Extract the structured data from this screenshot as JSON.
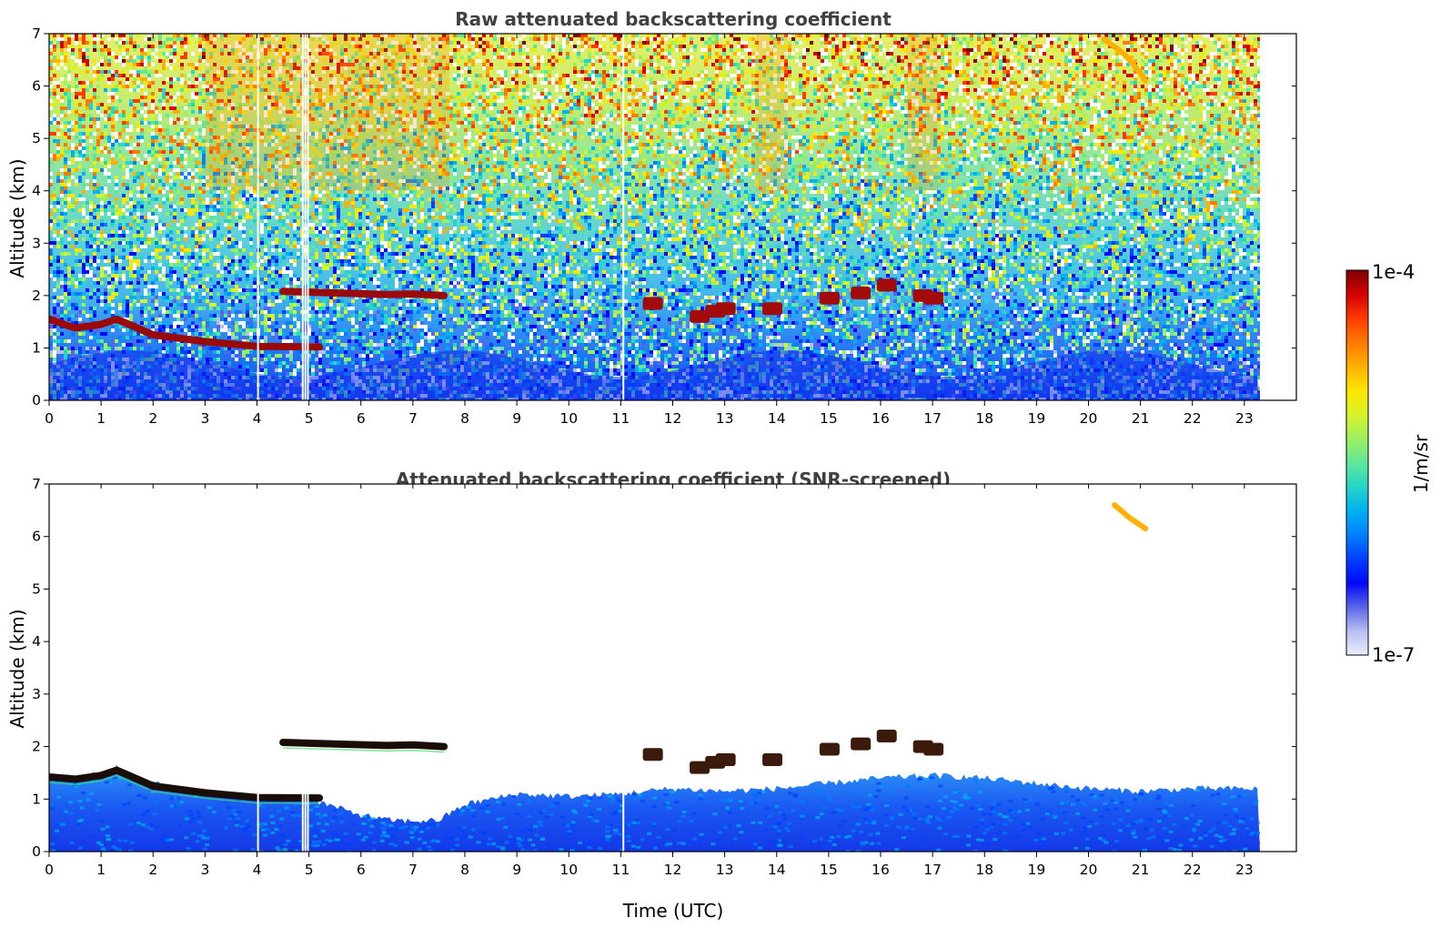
{
  "chart_data": [
    {
      "type": "heatmap",
      "title": "Raw attenuated backscattering coefficient",
      "xlabel": "",
      "ylabel": "Altitude (km)",
      "xlim": [
        0,
        24
      ],
      "ylim": [
        0,
        7
      ],
      "x_ticks": [
        "0",
        "1",
        "2",
        "3",
        "4",
        "5",
        "6",
        "7",
        "8",
        "9",
        "10",
        "11",
        "12",
        "13",
        "14",
        "15",
        "16",
        "17",
        "18",
        "19",
        "20",
        "21",
        "22",
        "23"
      ],
      "y_ticks": [
        "0",
        "1",
        "2",
        "3",
        "4",
        "5",
        "6",
        "7"
      ],
      "data_end_time": 23.3,
      "colorscale": "jet",
      "noise": "high",
      "dropouts_x": [
        4.02,
        4.88,
        4.93,
        4.98,
        11.05
      ],
      "layers": [
        {
          "name": "boundary layer top",
          "x": [
            0.0,
            0.5,
            1.0,
            1.3,
            2.0,
            3.0,
            4.0,
            5.2
          ],
          "y": [
            1.55,
            1.38,
            1.45,
            1.55,
            1.25,
            1.12,
            1.03,
            1.02
          ]
        },
        {
          "name": "elevated layer",
          "x": [
            4.5,
            5.5,
            6.5,
            7.0,
            7.6
          ],
          "y": [
            2.08,
            2.05,
            2.02,
            2.03,
            2.0
          ]
        },
        {
          "name": "cloud patches",
          "x": [
            11.6,
            12.5,
            12.8,
            13.0,
            13.9,
            15.0,
            15.6,
            16.1,
            16.8,
            17.0
          ],
          "y": [
            1.85,
            1.6,
            1.7,
            1.75,
            1.75,
            1.95,
            2.05,
            2.2,
            2.0,
            1.95
          ]
        },
        {
          "name": "upper aerosol plume",
          "x": [
            20.3,
            20.7,
            21.0,
            21.1
          ],
          "y": [
            6.9,
            6.6,
            6.25,
            6.1
          ]
        }
      ]
    },
    {
      "type": "heatmap",
      "title": "Attenuated backscattering coefficient (SNR-screened)",
      "xlabel": "Time (UTC)",
      "ylabel": "Altitude (km)",
      "xlim": [
        0,
        24
      ],
      "ylim": [
        0,
        7
      ],
      "x_ticks": [
        "0",
        "1",
        "2",
        "3",
        "4",
        "5",
        "6",
        "7",
        "8",
        "9",
        "10",
        "11",
        "12",
        "13",
        "14",
        "15",
        "16",
        "17",
        "18",
        "19",
        "20",
        "21",
        "22",
        "23"
      ],
      "y_ticks": [
        "0",
        "1",
        "2",
        "3",
        "4",
        "5",
        "6",
        "7"
      ],
      "data_end_time": 23.3,
      "colorscale": "jet",
      "screened_top_km": {
        "x": [
          0,
          0.5,
          1.0,
          1.3,
          2.0,
          3.0,
          4.0,
          5.0,
          5.5,
          6.0,
          6.5,
          7.0,
          7.5,
          8.0,
          9.0,
          10.0,
          11.0,
          12.0,
          13.0,
          14.0,
          15.0,
          16.0,
          17.0,
          18.0,
          19.0,
          20.0,
          21.0,
          22.0,
          23.3
        ],
        "y": [
          1.5,
          1.38,
          1.5,
          1.6,
          1.3,
          1.12,
          1.02,
          1.0,
          0.85,
          0.7,
          0.6,
          0.58,
          0.6,
          0.9,
          1.1,
          1.05,
          1.1,
          1.2,
          1.15,
          1.2,
          1.3,
          1.4,
          1.45,
          1.4,
          1.3,
          1.2,
          1.15,
          1.2,
          1.2
        ]
      },
      "layers": [
        {
          "name": "boundary layer top",
          "x": [
            0.0,
            0.5,
            1.0,
            1.3,
            2.0,
            3.0,
            4.0,
            5.2
          ],
          "y": [
            1.42,
            1.38,
            1.45,
            1.55,
            1.25,
            1.12,
            1.03,
            1.02
          ]
        },
        {
          "name": "elevated layer",
          "x": [
            4.5,
            5.5,
            6.5,
            7.0,
            7.6
          ],
          "y": [
            2.08,
            2.05,
            2.02,
            2.03,
            2.0
          ]
        },
        {
          "name": "cloud patches",
          "x": [
            11.6,
            12.5,
            12.8,
            13.0,
            13.9,
            15.0,
            15.6,
            16.1,
            16.8,
            17.0
          ],
          "y": [
            1.85,
            1.6,
            1.7,
            1.75,
            1.75,
            1.95,
            2.05,
            2.2,
            2.0,
            1.95
          ]
        },
        {
          "name": "upper aerosol plume",
          "x": [
            20.5,
            20.8,
            21.1
          ],
          "y": [
            6.6,
            6.35,
            6.15
          ]
        }
      ]
    }
  ],
  "colorbar": {
    "label": "1/m/sr",
    "max_label": "1e-4",
    "min_label": "1e-7",
    "colors": [
      "#7f0000",
      "#d50000",
      "#ff3b00",
      "#ff7a00",
      "#ffb000",
      "#ffe600",
      "#d8f22a",
      "#9cf060",
      "#5fe89a",
      "#25d6c8",
      "#00b0f0",
      "#0080ff",
      "#0040ff",
      "#0008f8",
      "#5a64e8",
      "#b7bff2",
      "#eceef8"
    ]
  }
}
